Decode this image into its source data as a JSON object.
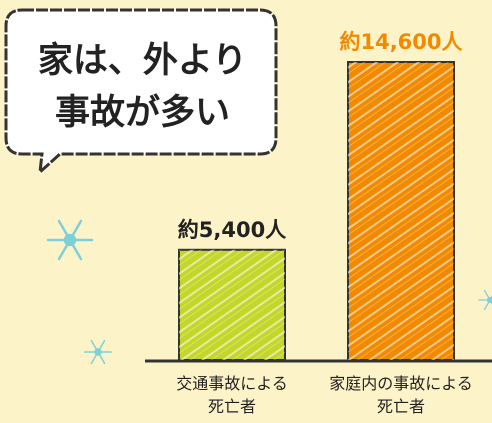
{
  "chart_data": {
    "type": "bar",
    "annotation": "家は、外より\n事故が多い",
    "categories": [
      "交通事故による\n死亡者",
      "家庭内の事故による\n死亡者"
    ],
    "values": [
      5400,
      14600
    ],
    "value_labels": [
      "約5,400人",
      "約14,600人"
    ],
    "colors": [
      "#c4d62a",
      "#f28a00"
    ],
    "value_label_colors": [
      "#222222",
      "#f28a00"
    ]
  }
}
